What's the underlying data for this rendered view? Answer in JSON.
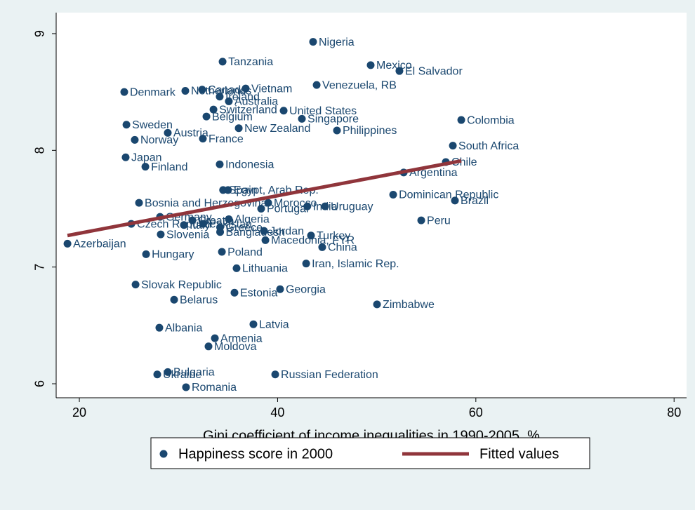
{
  "chart_data": {
    "type": "scatter",
    "xlabel": "Gini coefficient of income inequalities in 1990-2005, %",
    "xlim": [
      17.66,
      81.26
    ],
    "xticks": [
      20,
      40,
      60,
      80
    ],
    "ylim": [
      5.88,
      9.18
    ],
    "yticks": [
      6,
      7,
      8,
      9
    ],
    "legend": "bottom",
    "series": [
      {
        "name": "Happiness score in 2000",
        "color": "#1a476f",
        "labels": [
          "Nigeria",
          "Tanzania",
          "Mexico",
          "El Salvador",
          "Venezuela, RB",
          "Denmark",
          "Netherlands",
          "Canada",
          "Vietnam",
          "Ireland",
          "Australia",
          "Switzerland",
          "United States",
          "Belgium",
          "Singapore",
          "Colombia",
          "Sweden",
          "New Zealand",
          "Philippines",
          "Austria",
          "France",
          "Norway",
          "South Africa",
          "Japan",
          "Chile",
          "Finland",
          "Indonesia",
          "Argentina",
          "Spain",
          "Egypt, Arab Rep.",
          "Dominican Republic",
          "Morocco",
          "Portugal",
          "India",
          "Uruguay",
          "Bosnia and Herzegovina",
          "Brazil",
          "Peru",
          "Czech Republic",
          "Germany",
          "Algeria",
          "Croatia",
          "Italy",
          "Pakistan",
          "Greece",
          "Bangladesh",
          "Jordan",
          "Macedonia, FYR",
          "Turkey",
          "China",
          "Slovenia",
          "Azerbaijan",
          "Poland",
          "Hungary",
          "Lithuania",
          "Iran, Islamic Rep.",
          "Slovak Republic",
          "Estonia",
          "Georgia",
          "Belarus",
          "Zimbabwe",
          "Albania",
          "Latvia",
          "Armenia",
          "Moldova",
          "Ukraine",
          "Bulgaria",
          "Russian Federation",
          "Romania"
        ],
        "x": [
          43.58,
          34.45,
          49.39,
          52.29,
          43.94,
          24.53,
          30.69,
          32.39,
          36.78,
          34.16,
          35.08,
          33.53,
          40.61,
          32.82,
          42.45,
          58.53,
          24.75,
          36.08,
          45.99,
          28.92,
          32.46,
          25.59,
          57.68,
          24.67,
          56.97,
          26.66,
          34.16,
          52.72,
          34.5,
          35.0,
          51.66,
          39.05,
          38.34,
          43.0,
          44.79,
          26.02,
          57.89,
          54.49,
          25.24,
          28.14,
          35.08,
          31.4,
          30.55,
          32.5,
          34.2,
          34.2,
          38.63,
          38.77,
          43.37,
          44.5,
          28.21,
          18.8,
          34.38,
          26.73,
          35.86,
          42.88,
          25.67,
          35.65,
          40.25,
          29.56,
          50.03,
          28.07,
          37.56,
          33.67,
          33.03,
          27.86,
          28.92,
          39.76,
          30.76
        ],
        "values": [
          8.93,
          8.76,
          8.73,
          8.68,
          8.56,
          8.5,
          8.51,
          8.52,
          8.53,
          8.46,
          8.42,
          8.35,
          8.34,
          8.29,
          8.27,
          8.26,
          8.22,
          8.19,
          8.17,
          8.15,
          8.1,
          8.09,
          8.04,
          7.94,
          7.9,
          7.86,
          7.88,
          7.81,
          7.66,
          7.66,
          7.62,
          7.55,
          7.5,
          7.52,
          7.52,
          7.55,
          7.57,
          7.4,
          7.37,
          7.43,
          7.41,
          7.4,
          7.36,
          7.37,
          7.34,
          7.3,
          7.31,
          7.23,
          7.27,
          7.17,
          7.28,
          7.2,
          7.13,
          7.11,
          6.99,
          7.03,
          6.85,
          6.78,
          6.81,
          6.72,
          6.68,
          6.48,
          6.51,
          6.39,
          6.32,
          6.08,
          6.1,
          6.08,
          5.97
        ]
      },
      {
        "name": "Fitted values",
        "color": "#90353b",
        "type": "line",
        "x": [
          18.8,
          58.53
        ],
        "values": [
          7.27,
          7.91
        ]
      }
    ]
  }
}
